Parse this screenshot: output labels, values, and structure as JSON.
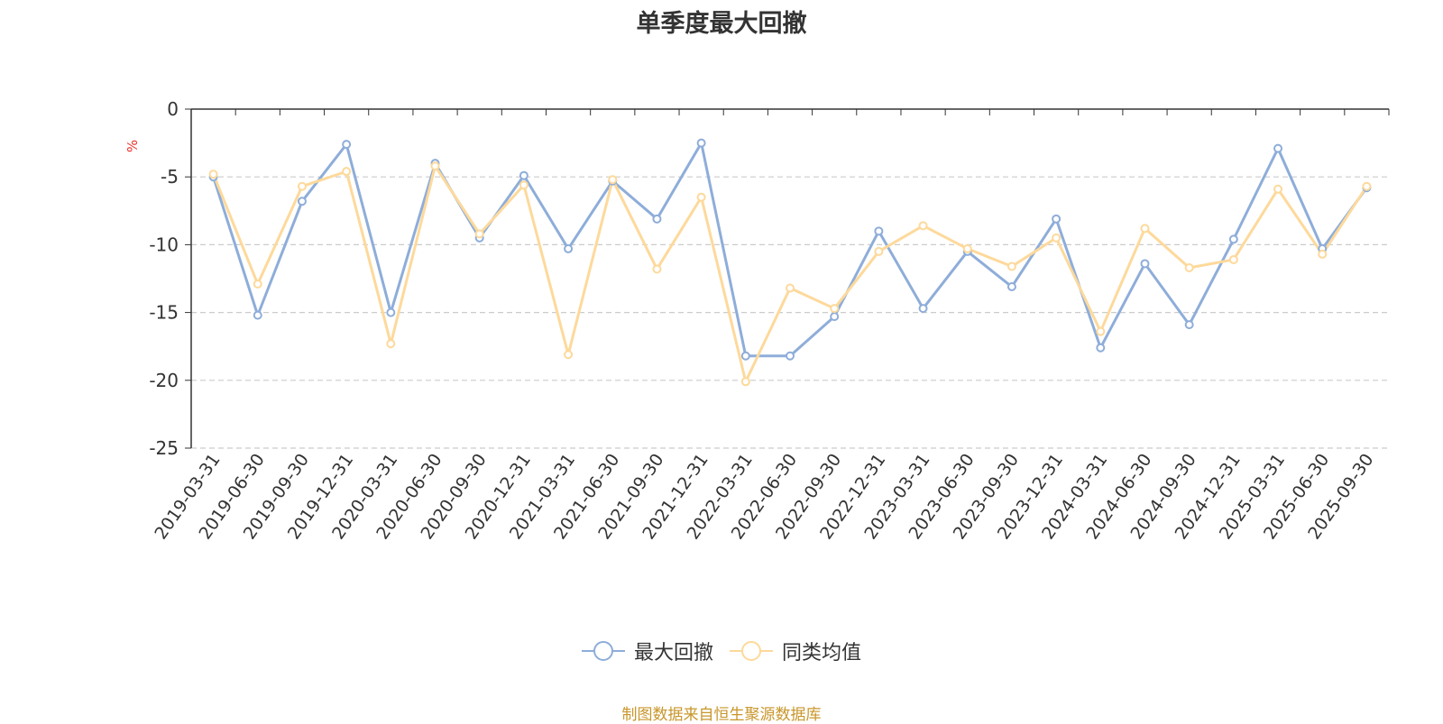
{
  "chart_data": {
    "type": "line",
    "title": "单季度最大回撤",
    "ylabel": "%",
    "ylim": [
      -25,
      0
    ],
    "yticks": [
      0,
      -5,
      -10,
      -15,
      -20,
      -25
    ],
    "grid": true,
    "legend_position": "bottom",
    "categories": [
      "2019-03-31",
      "2019-06-30",
      "2019-09-30",
      "2019-12-31",
      "2020-03-31",
      "2020-06-30",
      "2020-09-30",
      "2020-12-31",
      "2021-03-31",
      "2021-06-30",
      "2021-09-30",
      "2021-12-31",
      "2022-03-31",
      "2022-06-30",
      "2022-09-30",
      "2022-12-31",
      "2023-03-31",
      "2023-06-30",
      "2023-09-30",
      "2023-12-31",
      "2024-03-31",
      "2024-06-30",
      "2024-09-30",
      "2024-12-31",
      "2025-03-31",
      "2025-06-30",
      "2025-09-30"
    ],
    "series": [
      {
        "name": "最大回撤",
        "color": "#8eadd9",
        "values": [
          -5.0,
          -15.2,
          -6.8,
          -2.6,
          -15.0,
          -4.0,
          -9.5,
          -4.9,
          -10.3,
          -5.3,
          -8.1,
          -2.5,
          -18.2,
          -18.2,
          -15.3,
          -9.0,
          -14.7,
          -10.5,
          -13.1,
          -8.1,
          -17.6,
          -11.4,
          -15.9,
          -9.6,
          -2.9,
          -10.3,
          -5.8
        ]
      },
      {
        "name": "同类均值",
        "color": "#fdd99b",
        "values": [
          -4.8,
          -12.9,
          -5.7,
          -4.6,
          -17.3,
          -4.2,
          -9.2,
          -5.6,
          -18.1,
          -5.2,
          -11.8,
          -6.5,
          -20.1,
          -13.2,
          -14.7,
          -10.5,
          -8.6,
          -10.3,
          -11.6,
          -9.5,
          -16.4,
          -8.8,
          -11.7,
          -11.1,
          -5.9,
          -10.7,
          -5.7
        ]
      }
    ]
  },
  "source_note": "制图数据来自恒生聚源数据库"
}
